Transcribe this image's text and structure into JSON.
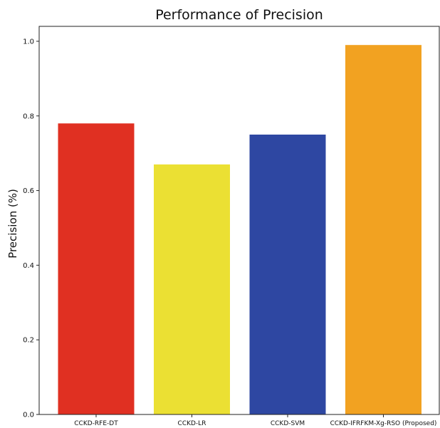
{
  "chart_data": {
    "type": "bar",
    "title": "Performance of Precision",
    "xlabel": "",
    "ylabel": "Precision (%)",
    "categories": [
      "CCKD-RFE-DT",
      "CCKD-LR",
      "CCKD-SVM",
      "CCKD-IFRFKM-Xg-RSO (Proposed)"
    ],
    "values": [
      0.78,
      0.67,
      0.75,
      0.99
    ],
    "colors": [
      "#e03022",
      "#ebe033",
      "#2e47a2",
      "#f2a221"
    ],
    "ylim": [
      0,
      1.04
    ],
    "yticks": [
      0.0,
      0.2,
      0.4,
      0.6,
      0.8,
      1.0
    ],
    "ytick_labels": [
      "0.0",
      "0.2",
      "0.4",
      "0.6",
      "0.8",
      "1.0"
    ],
    "grid": false,
    "legend": "none"
  }
}
